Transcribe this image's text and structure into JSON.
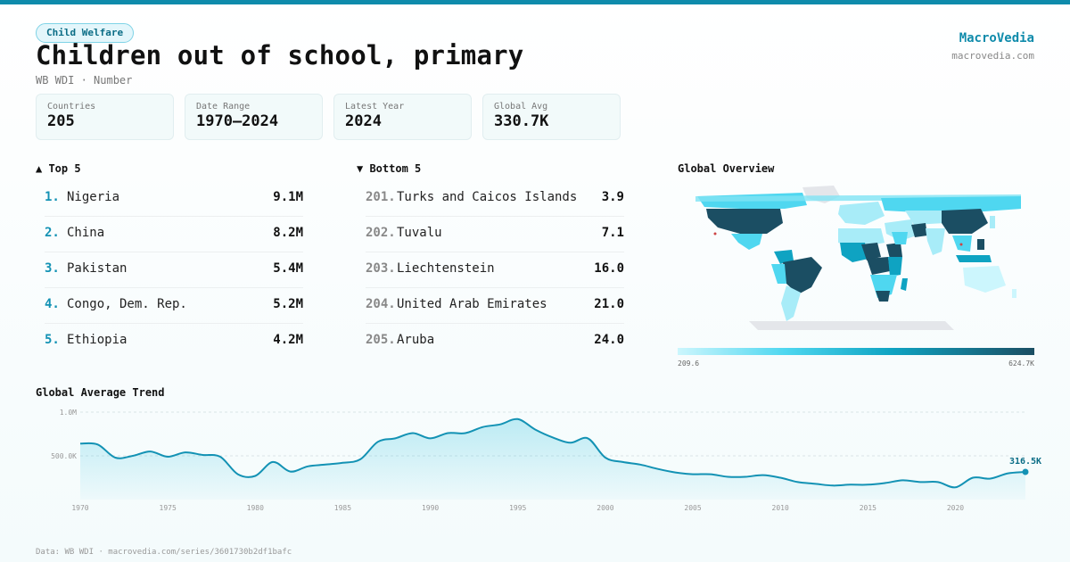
{
  "header": {
    "tag": "Child Welfare",
    "title": "Children out of school, primary",
    "subtitle": "WB WDI · Number",
    "brand": "MacroVedia",
    "brand_url": "macrovedia.com"
  },
  "stats": [
    {
      "label": "Countries",
      "value": "205"
    },
    {
      "label": "Date Range",
      "value": "1970–2024"
    },
    {
      "label": "Latest Year",
      "value": "2024"
    },
    {
      "label": "Global Avg",
      "value": "330.7K"
    }
  ],
  "top5": {
    "heading": "▲ Top 5",
    "items": [
      {
        "rank": "1.",
        "name": "Nigeria",
        "value": "9.1M"
      },
      {
        "rank": "2.",
        "name": "China",
        "value": "8.2M"
      },
      {
        "rank": "3.",
        "name": "Pakistan",
        "value": "5.4M"
      },
      {
        "rank": "4.",
        "name": "Congo, Dem. Rep.",
        "value": "5.2M"
      },
      {
        "rank": "5.",
        "name": "Ethiopia",
        "value": "4.2M"
      }
    ]
  },
  "bottom5": {
    "heading": "▼ Bottom 5",
    "items": [
      {
        "rank": "201.",
        "name": "Turks and Caicos Islands",
        "value": "3.9"
      },
      {
        "rank": "202.",
        "name": "Tuvalu",
        "value": "7.1"
      },
      {
        "rank": "203.",
        "name": "Liechtenstein",
        "value": "16.0"
      },
      {
        "rank": "204.",
        "name": "United Arab Emirates",
        "value": "21.0"
      },
      {
        "rank": "205.",
        "name": "Aruba",
        "value": "24.0"
      }
    ]
  },
  "map": {
    "heading": "Global Overview",
    "legend_min": "209.6",
    "legend_max": "624.7K",
    "colors": {
      "low": "#ccf6fd",
      "mid": "#4fd7f0",
      "high": "#0fa3c2",
      "top": "#1b4e63",
      "nodata": "#e4e6ea"
    }
  },
  "trend": {
    "heading": "Global Average Trend",
    "last_label": "316.5K"
  },
  "footer": "Data: WB WDI · macrovedia.com/series/3601730b2df1bafc",
  "chart_data": {
    "type": "area",
    "title": "Global Average Trend",
    "xlabel": "",
    "ylabel": "",
    "x": [
      1970,
      1971,
      1972,
      1973,
      1974,
      1975,
      1976,
      1977,
      1978,
      1979,
      1980,
      1981,
      1982,
      1983,
      1984,
      1985,
      1986,
      1987,
      1988,
      1989,
      1990,
      1991,
      1992,
      1993,
      1994,
      1995,
      1996,
      1997,
      1998,
      1999,
      2000,
      2001,
      2002,
      2003,
      2004,
      2005,
      2006,
      2007,
      2008,
      2009,
      2010,
      2011,
      2012,
      2013,
      2014,
      2015,
      2016,
      2017,
      2018,
      2019,
      2020,
      2021,
      2022,
      2023,
      2024
    ],
    "values": [
      640000,
      630000,
      480000,
      500000,
      550000,
      490000,
      540000,
      510000,
      490000,
      290000,
      270000,
      430000,
      320000,
      380000,
      400000,
      420000,
      460000,
      660000,
      700000,
      760000,
      700000,
      760000,
      760000,
      830000,
      860000,
      920000,
      800000,
      710000,
      650000,
      700000,
      480000,
      430000,
      400000,
      350000,
      310000,
      290000,
      290000,
      260000,
      260000,
      280000,
      250000,
      200000,
      180000,
      160000,
      170000,
      170000,
      190000,
      220000,
      200000,
      200000,
      140000,
      250000,
      240000,
      300000,
      316500
    ],
    "xticks": [
      "1970",
      "1975",
      "1980",
      "1985",
      "1990",
      "1995",
      "2000",
      "2005",
      "2010",
      "2015",
      "2020"
    ],
    "yticks": [
      "500.0K",
      "1.0M"
    ],
    "ylim": [
      0,
      1000000
    ],
    "grid": true,
    "color": "#1392b4"
  }
}
